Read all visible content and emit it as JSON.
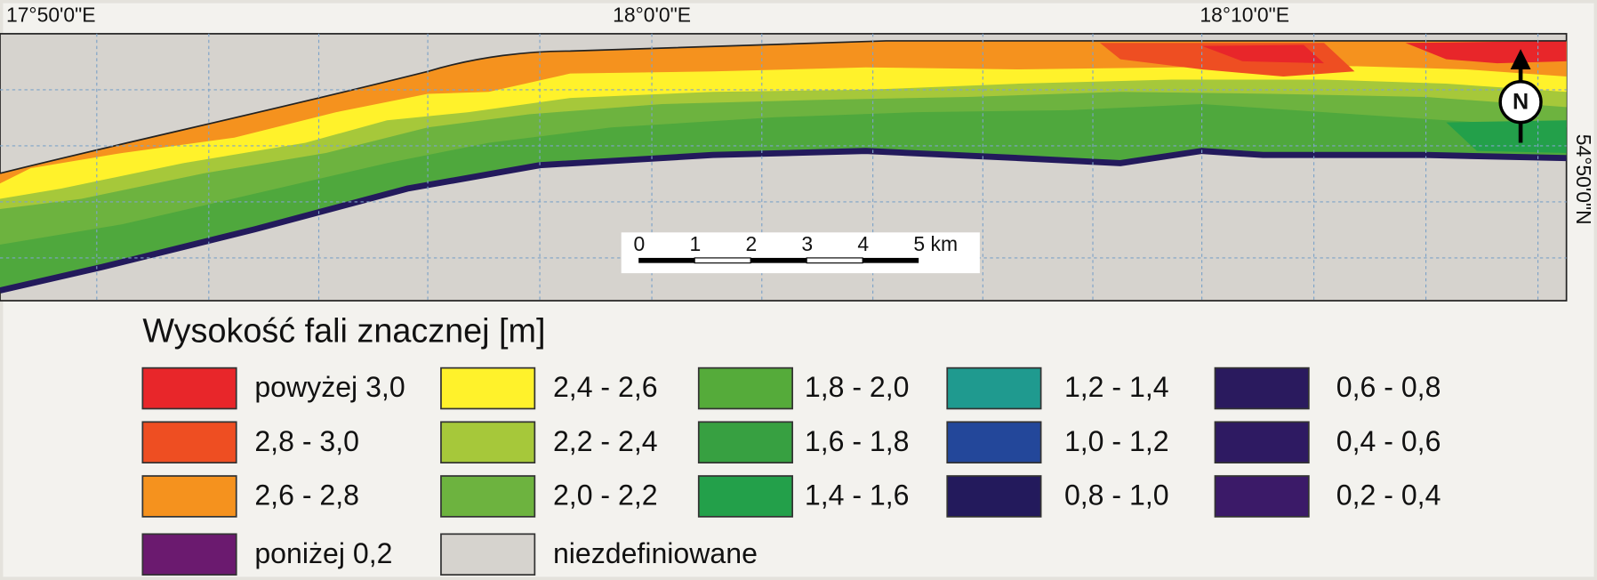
{
  "map": {
    "lon_labels": [
      "17°50'0\"E",
      "18°0'0\"E",
      "18°10'0\"E"
    ],
    "lat_labels": [
      "54°50'0\"N"
    ],
    "scale_bar": {
      "labels": [
        "0",
        "1",
        "2",
        "3",
        "4",
        "5 km"
      ]
    },
    "north_label": "N"
  },
  "legend": {
    "title": "Wysokość fali znacznej [m]",
    "items": [
      {
        "label": "powyżej 3,0",
        "color": "#e8262a"
      },
      {
        "label": "2,8 - 3,0",
        "color": "#ee4e22"
      },
      {
        "label": "2,6 - 2,8",
        "color": "#f5921e"
      },
      {
        "label": "2,4 - 2,6",
        "color": "#fff22b"
      },
      {
        "label": "2,2 - 2,4",
        "color": "#a6c83a"
      },
      {
        "label": "2,0 - 2,2",
        "color": "#6db33f"
      },
      {
        "label": "1,8 - 2,0",
        "color": "#55ab3a"
      },
      {
        "label": "1,6 - 1,8",
        "color": "#37a041"
      },
      {
        "label": "1,4 - 1,6",
        "color": "#23a04a"
      },
      {
        "label": "1,2 - 1,4",
        "color": "#1f9a8f"
      },
      {
        "label": "1,0 - 1,2",
        "color": "#23479a"
      },
      {
        "label": "0,8 - 1,0",
        "color": "#231a5c"
      },
      {
        "label": "0,6 - 0,8",
        "color": "#2a1a5e"
      },
      {
        "label": "0,4 - 0,6",
        "color": "#2e1a62"
      },
      {
        "label": "0,2 - 0,4",
        "color": "#3b1a68"
      },
      {
        "label": "poniżej 0,2",
        "color": "#6b1a6f"
      },
      {
        "label": "niezdefiniowane",
        "color": "#d6d3ce"
      }
    ]
  }
}
